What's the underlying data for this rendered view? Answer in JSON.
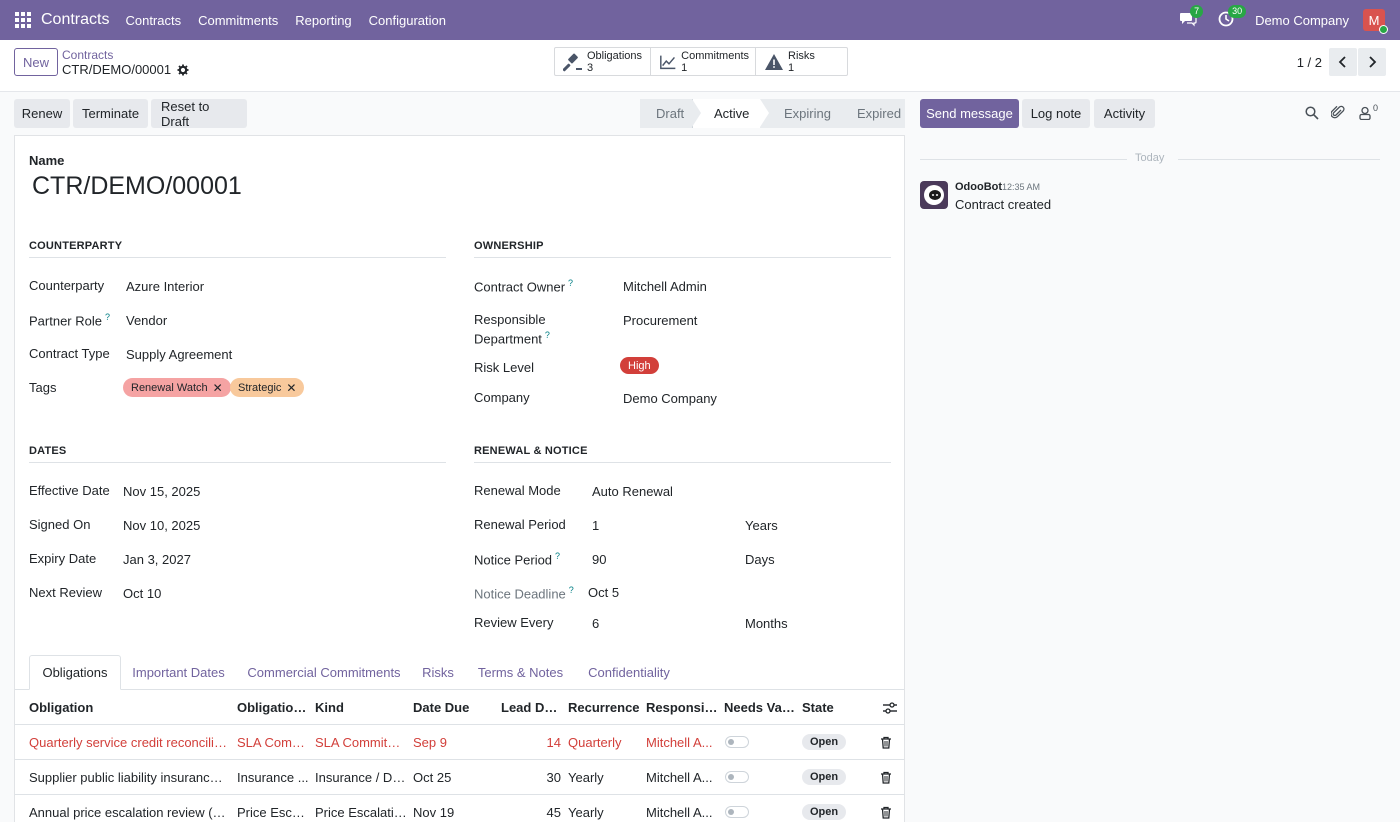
{
  "navbar": {
    "app_name": "Contracts",
    "menus": [
      "Contracts",
      "Commitments",
      "Reporting",
      "Configuration"
    ],
    "messages_count": "7",
    "activities_count": "30",
    "company": "Demo Company",
    "avatar_initial": "M"
  },
  "control": {
    "new_label": "New",
    "breadcrumb_parent": "Contracts",
    "breadcrumb_current": "CTR/DEMO/00001",
    "smart_buttons": [
      {
        "label": "Obligations",
        "count": "3",
        "icon": "gavel-icon"
      },
      {
        "label": "Commitments",
        "count": "1",
        "icon": "chart-line-icon"
      },
      {
        "label": "Risks",
        "count": "1",
        "icon": "warning-icon"
      }
    ],
    "pager": "1 / 2"
  },
  "actions": {
    "renew": "Renew",
    "terminate": "Terminate",
    "reset": "Reset to Draft"
  },
  "status": {
    "stages": [
      "Draft",
      "Active",
      "Expiring",
      "Expired"
    ],
    "current": "Active"
  },
  "chatter": {
    "send_message": "Send message",
    "log_note": "Log note",
    "activity": "Activity",
    "followers_count": "0",
    "date_separator": "Today",
    "message": {
      "author": "OdooBot",
      "time": "12:35 AM",
      "body": "Contract created"
    }
  },
  "form": {
    "name_label": "Name",
    "name_value": "CTR/DEMO/00001",
    "sections": {
      "counterparty": "COUNTERPARTY",
      "ownership": "OWNERSHIP",
      "dates": "DATES",
      "renewal": "RENEWAL & NOTICE"
    },
    "counterparty": {
      "counterparty_label": "Counterparty",
      "counterparty_value": "Azure Interior",
      "partner_role_label": "Partner Role",
      "partner_role_value": "Vendor",
      "contract_type_label": "Contract Type",
      "contract_type_value": "Supply Agreement",
      "tags_label": "Tags",
      "tags": [
        {
          "name": "Renewal Watch",
          "color": "#f5a3a3"
        },
        {
          "name": "Strategic",
          "color": "#f8c99c"
        }
      ]
    },
    "ownership": {
      "owner_label": "Contract Owner",
      "owner_value": "Mitchell Admin",
      "dept_label_1": "Responsible",
      "dept_label_2": "Department",
      "dept_value": "Procurement",
      "risk_label": "Risk Level",
      "risk_value": "High",
      "company_label": "Company",
      "company_value": "Demo Company"
    },
    "dates": {
      "effective_label": "Effective Date",
      "effective_value": "Nov 15, 2025",
      "signed_label": "Signed On",
      "signed_value": "Nov 10, 2025",
      "expiry_label": "Expiry Date",
      "expiry_value": "Jan 3, 2027",
      "review_label": "Next Review",
      "review_value": "Oct 10"
    },
    "renewal": {
      "mode_label": "Renewal Mode",
      "mode_value": "Auto Renewal",
      "period_label": "Renewal Period",
      "period_value": "1",
      "period_unit": "Years",
      "notice_label": "Notice Period",
      "notice_value": "90",
      "notice_unit": "Days",
      "deadline_label": "Notice Deadline",
      "deadline_value": "Oct 5",
      "review_every_label": "Review Every",
      "review_every_value": "6",
      "review_every_unit": "Months"
    }
  },
  "tabs": [
    "Obligations",
    "Important Dates",
    "Commercial Commitments",
    "Risks",
    "Terms & Notes",
    "Confidentiality"
  ],
  "table": {
    "headers": [
      "Obligation",
      "Obligation...",
      "Kind",
      "Date Due",
      "Lead Days",
      "Recurrence",
      "Responsible",
      "Needs Vali...",
      "State"
    ],
    "rows": [
      {
        "obligation": "Quarterly service credit reconciliati...",
        "category": "SLA Comm...",
        "kind": "SLA Commitm...",
        "date_due": "Sep 9",
        "lead_days": "14",
        "recurrence": "Quarterly",
        "responsible": "Mitchell A...",
        "state": "Open",
        "overdue": true
      },
      {
        "obligation": "Supplier public liability insurance ...",
        "category": "Insurance ...",
        "kind": "Insurance / Do...",
        "date_due": "Oct 25",
        "lead_days": "30",
        "recurrence": "Yearly",
        "responsible": "Mitchell A...",
        "state": "Open",
        "overdue": false
      },
      {
        "obligation": "Annual price escalation review (CPI...",
        "category": "Price Escal...",
        "kind": "Price Escalation",
        "date_due": "Nov 19",
        "lead_days": "45",
        "recurrence": "Yearly",
        "responsible": "Mitchell A...",
        "state": "Open",
        "overdue": false
      }
    ]
  }
}
